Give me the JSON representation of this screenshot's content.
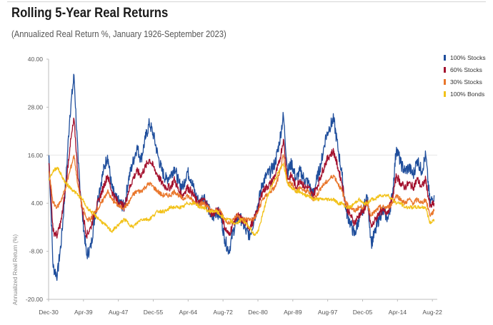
{
  "chart_data": {
    "type": "line",
    "title": "Rolling 5-Year Real Returns",
    "subtitle": "(Annualized Real Return %, January 1926-September 2023)",
    "ylabel": "Annualized Real Return (%)",
    "xlabel": "",
    "ylim": [
      -20,
      40
    ],
    "yticks": [
      40,
      28,
      16,
      4,
      -8,
      -20
    ],
    "ytick_labels": [
      "40.00",
      "28.00",
      "16.00",
      "4.00",
      "-8.00",
      "-20.00"
    ],
    "xticks": [
      1930.92,
      1939.25,
      1947.58,
      1955.92,
      1964.25,
      1972.58,
      1980.92,
      1989.25,
      1997.58,
      2005.92,
      2014.25,
      2022.58
    ],
    "xtick_labels": [
      "Dec-30",
      "Apr-39",
      "Aug-47",
      "Dec-55",
      "Apr-64",
      "Aug-72",
      "Dec-80",
      "Apr-89",
      "Aug-97",
      "Dec-05",
      "Apr-14",
      "Aug-22"
    ],
    "xlim": [
      1930.92,
      2023.75
    ],
    "legend_position": "right",
    "series": [
      {
        "name": "100% Stocks",
        "color": "#1f4e9c",
        "x": [
          1931,
          1932,
          1933,
          1934,
          1935,
          1936,
          1937,
          1938,
          1939,
          1940,
          1941,
          1942,
          1943,
          1944,
          1945,
          1946,
          1947,
          1948,
          1949,
          1950,
          1951,
          1952,
          1953,
          1954,
          1955,
          1956,
          1957,
          1958,
          1959,
          1960,
          1961,
          1962,
          1963,
          1964,
          1965,
          1966,
          1967,
          1968,
          1969,
          1970,
          1971,
          1972,
          1973,
          1974,
          1975,
          1976,
          1977,
          1978,
          1979,
          1980,
          1981,
          1982,
          1983,
          1984,
          1985,
          1986,
          1987,
          1988,
          1989,
          1990,
          1991,
          1992,
          1993,
          1994,
          1995,
          1996,
          1997,
          1998,
          1999,
          2000,
          2001,
          2002,
          2003,
          2004,
          2005,
          2006,
          2007,
          2008,
          2009,
          2010,
          2011,
          2012,
          2013,
          2014,
          2015,
          2016,
          2017,
          2018,
          2019,
          2020,
          2021,
          2022,
          2023
        ],
        "values": [
          16,
          -12,
          -14,
          -5,
          9,
          26,
          36,
          14,
          1,
          -9,
          -7,
          1,
          7,
          12,
          16,
          8,
          5,
          4,
          3,
          10,
          14,
          18,
          15,
          20,
          24,
          21,
          16,
          12,
          10,
          11,
          13,
          9,
          8,
          12,
          10,
          6,
          4,
          6,
          3,
          0,
          2,
          1,
          -5,
          -8,
          -3,
          0,
          0,
          -3,
          -4,
          0,
          4,
          9,
          11,
          12,
          14,
          19,
          26,
          12,
          14,
          10,
          12,
          10,
          9,
          6,
          10,
          14,
          20,
          23,
          25,
          18,
          11,
          2,
          -1,
          -4,
          0,
          2,
          6,
          -6,
          -3,
          1,
          2,
          0,
          6,
          18,
          14,
          12,
          13,
          11,
          15,
          12,
          16,
          4,
          6
        ]
      },
      {
        "name": "60% Stocks",
        "color": "#a3112e",
        "x": [
          1931,
          1932,
          1933,
          1934,
          1935,
          1936,
          1937,
          1938,
          1939,
          1940,
          1941,
          1942,
          1943,
          1944,
          1945,
          1946,
          1947,
          1948,
          1949,
          1950,
          1951,
          1952,
          1953,
          1954,
          1955,
          1956,
          1957,
          1958,
          1959,
          1960,
          1961,
          1962,
          1963,
          1964,
          1965,
          1966,
          1967,
          1968,
          1969,
          1970,
          1971,
          1972,
          1973,
          1974,
          1975,
          1976,
          1977,
          1978,
          1979,
          1980,
          1981,
          1982,
          1983,
          1984,
          1985,
          1986,
          1987,
          1988,
          1989,
          1990,
          1991,
          1992,
          1993,
          1994,
          1995,
          1996,
          1997,
          1998,
          1999,
          2000,
          2001,
          2002,
          2003,
          2004,
          2005,
          2006,
          2007,
          2008,
          2009,
          2010,
          2011,
          2012,
          2013,
          2014,
          2015,
          2016,
          2017,
          2018,
          2019,
          2020,
          2021,
          2022,
          2023
        ],
        "values": [
          14,
          -3,
          -4,
          0,
          8,
          18,
          25,
          10,
          2,
          -4,
          -2,
          2,
          5,
          8,
          11,
          7,
          5,
          4,
          3,
          7,
          10,
          12,
          11,
          13,
          15,
          13,
          11,
          9,
          8,
          8,
          10,
          7,
          6,
          8,
          7,
          5,
          4,
          5,
          3,
          1,
          2,
          2,
          -2,
          -4,
          -1,
          1,
          0,
          -1,
          -2,
          0,
          3,
          7,
          8,
          9,
          11,
          14,
          20,
          10,
          11,
          8,
          10,
          8,
          8,
          6,
          8,
          11,
          14,
          16,
          17,
          13,
          9,
          3,
          1,
          -1,
          1,
          2,
          4,
          -2,
          0,
          2,
          2,
          2,
          5,
          11,
          9,
          8,
          9,
          8,
          10,
          8,
          10,
          3,
          4
        ]
      },
      {
        "name": "30% Stocks",
        "color": "#e9762b",
        "x": [
          1931,
          1932,
          1933,
          1934,
          1935,
          1936,
          1937,
          1938,
          1939,
          1940,
          1941,
          1942,
          1943,
          1944,
          1945,
          1946,
          1947,
          1948,
          1949,
          1950,
          1951,
          1952,
          1953,
          1954,
          1955,
          1956,
          1957,
          1958,
          1959,
          1960,
          1961,
          1962,
          1963,
          1964,
          1965,
          1966,
          1967,
          1968,
          1969,
          1970,
          1971,
          1972,
          1973,
          1974,
          1975,
          1976,
          1977,
          1978,
          1979,
          1980,
          1981,
          1982,
          1983,
          1984,
          1985,
          1986,
          1987,
          1988,
          1989,
          1990,
          1991,
          1992,
          1993,
          1994,
          1995,
          1996,
          1997,
          1998,
          1999,
          2000,
          2001,
          2002,
          2003,
          2004,
          2005,
          2006,
          2007,
          2008,
          2009,
          2010,
          2011,
          2012,
          2013,
          2014,
          2015,
          2016,
          2017,
          2018,
          2019,
          2020,
          2021,
          2022,
          2023
        ],
        "values": [
          12,
          4,
          3,
          5,
          8,
          12,
          16,
          8,
          3,
          0,
          0,
          2,
          3,
          5,
          7,
          5,
          4,
          3,
          3,
          4,
          6,
          7,
          7,
          8,
          9,
          8,
          7,
          6,
          6,
          6,
          7,
          6,
          5,
          6,
          5,
          4,
          4,
          4,
          3,
          2,
          2,
          2,
          0,
          -1,
          0,
          1,
          0,
          0,
          0,
          0,
          2,
          5,
          6,
          7,
          8,
          11,
          16,
          9,
          9,
          7,
          8,
          7,
          7,
          5,
          6,
          8,
          9,
          10,
          11,
          9,
          7,
          4,
          3,
          2,
          3,
          3,
          4,
          1,
          2,
          3,
          3,
          3,
          4,
          6,
          5,
          4,
          5,
          4,
          5,
          4,
          5,
          1,
          2
        ]
      },
      {
        "name": "100% Bonds",
        "color": "#f2c21a",
        "x": [
          1931,
          1932,
          1933,
          1934,
          1935,
          1936,
          1937,
          1938,
          1939,
          1940,
          1941,
          1942,
          1943,
          1944,
          1945,
          1946,
          1947,
          1948,
          1949,
          1950,
          1951,
          1952,
          1953,
          1954,
          1955,
          1956,
          1957,
          1958,
          1959,
          1960,
          1961,
          1962,
          1963,
          1964,
          1965,
          1966,
          1967,
          1968,
          1969,
          1970,
          1971,
          1972,
          1973,
          1974,
          1975,
          1976,
          1977,
          1978,
          1979,
          1980,
          1981,
          1982,
          1983,
          1984,
          1985,
          1986,
          1987,
          1988,
          1989,
          1990,
          1991,
          1992,
          1993,
          1994,
          1995,
          1996,
          1997,
          1998,
          1999,
          2000,
          2001,
          2002,
          2003,
          2004,
          2005,
          2006,
          2007,
          2008,
          2009,
          2010,
          2011,
          2012,
          2013,
          2014,
          2015,
          2016,
          2017,
          2018,
          2019,
          2020,
          2021,
          2022,
          2023
        ],
        "values": [
          10,
          12,
          13,
          11,
          9,
          8,
          7,
          6,
          5,
          3,
          2,
          1,
          0,
          -1,
          -2,
          -3,
          -2,
          -1,
          0,
          -1,
          -2,
          -1,
          0,
          0,
          0,
          1,
          2,
          2,
          2,
          3,
          3,
          3,
          3,
          4,
          4,
          4,
          3,
          3,
          2,
          2,
          2,
          1,
          0,
          0,
          -1,
          -1,
          0,
          -1,
          -2,
          -4,
          -3,
          1,
          5,
          8,
          10,
          12,
          14,
          9,
          8,
          7,
          7,
          6,
          6,
          5,
          5,
          5,
          5,
          5,
          5,
          4,
          4,
          3,
          3,
          4,
          5,
          4,
          4,
          5,
          5,
          6,
          6,
          6,
          5,
          4,
          4,
          3,
          3,
          3,
          3,
          3,
          3,
          -1,
          0
        ]
      }
    ]
  }
}
